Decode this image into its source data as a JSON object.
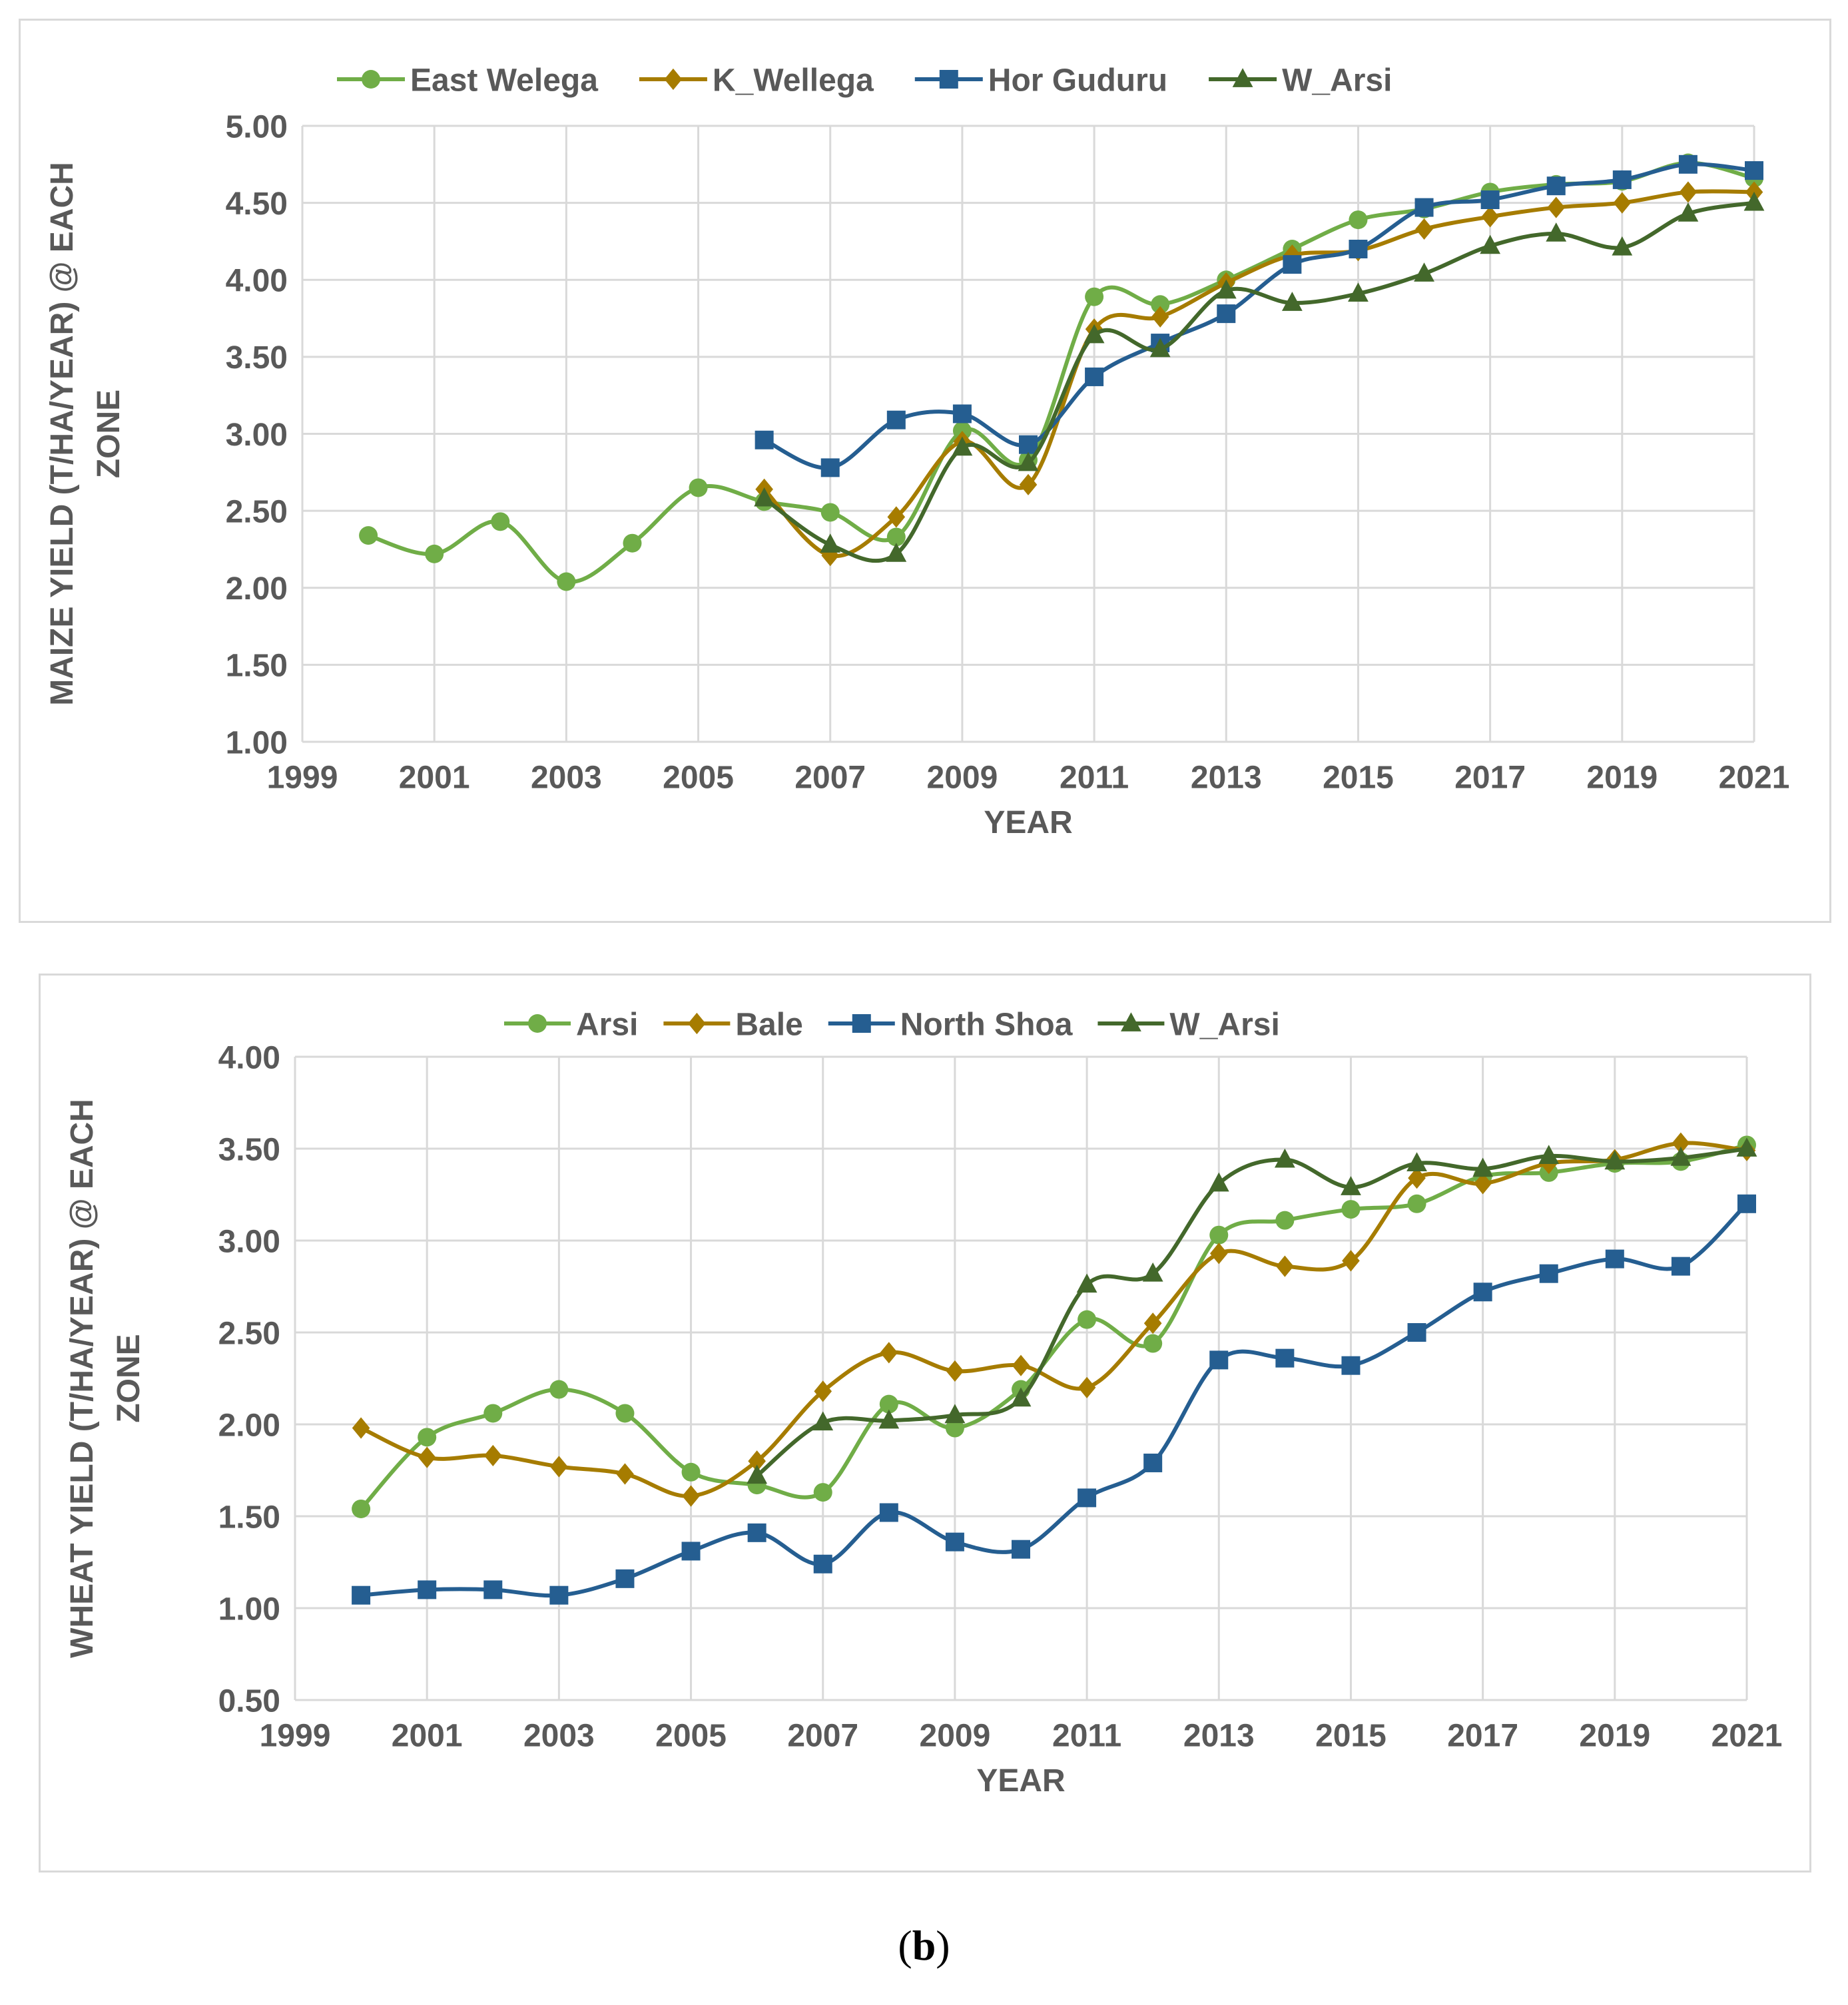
{
  "caption": {
    "open": "(",
    "letter": "b",
    "close": ")"
  },
  "chart_data": [
    {
      "type": "line",
      "id": "maize",
      "title": "",
      "xlabel": "YEAR",
      "ylabel_line1": "MAIZE YIELD (T/HA/YEAR) @ EACH",
      "ylabel_line2": "ZONE",
      "xlim": [
        1999,
        2021
      ],
      "ylim": [
        1.0,
        5.0
      ],
      "xticks": [
        1999,
        2001,
        2003,
        2005,
        2007,
        2009,
        2011,
        2013,
        2015,
        2017,
        2019,
        2021
      ],
      "yticks": [
        "1.00",
        "1.50",
        "2.00",
        "2.50",
        "3.00",
        "3.50",
        "4.00",
        "4.50",
        "5.00"
      ],
      "grid": true,
      "legend_position": "top",
      "series": [
        {
          "name": "East Welega",
          "color": "#70ad47",
          "marker": "circle",
          "x": [
            2000,
            2001,
            2002,
            2003,
            2004,
            2005,
            2006,
            2007,
            2008,
            2009,
            2010,
            2011,
            2012,
            2013,
            2014,
            2015,
            2016,
            2017,
            2018,
            2019,
            2020,
            2021
          ],
          "y": [
            2.34,
            2.22,
            2.43,
            2.04,
            2.29,
            2.65,
            2.56,
            2.49,
            2.33,
            3.02,
            2.83,
            3.89,
            3.84,
            4.0,
            4.2,
            4.39,
            4.46,
            4.57,
            4.62,
            4.64,
            4.76,
            4.66
          ]
        },
        {
          "name": "K_Wellega",
          "color": "#a67c00",
          "marker": "diamond",
          "x": [
            2006,
            2007,
            2008,
            2009,
            2010,
            2011,
            2012,
            2013,
            2014,
            2015,
            2016,
            2017,
            2018,
            2019,
            2020,
            2021
          ],
          "y": [
            2.64,
            2.21,
            2.46,
            2.95,
            2.67,
            3.68,
            3.76,
            3.98,
            4.16,
            4.19,
            4.33,
            4.41,
            4.47,
            4.5,
            4.57,
            4.57
          ]
        },
        {
          "name": "Hor Guduru",
          "color": "#255e91",
          "marker": "square",
          "x": [
            2006,
            2007,
            2008,
            2009,
            2010,
            2011,
            2012,
            2013,
            2014,
            2015,
            2016,
            2017,
            2018,
            2019,
            2020,
            2021
          ],
          "y": [
            2.96,
            2.78,
            3.09,
            3.13,
            2.93,
            3.37,
            3.59,
            3.78,
            4.1,
            4.2,
            4.47,
            4.52,
            4.61,
            4.65,
            4.75,
            4.71
          ]
        },
        {
          "name": "W_Arsi",
          "color": "#43682b",
          "marker": "triangle",
          "x": [
            2006,
            2007,
            2008,
            2009,
            2010,
            2011,
            2012,
            2013,
            2014,
            2015,
            2016,
            2017,
            2018,
            2019,
            2020,
            2021
          ],
          "y": [
            2.58,
            2.28,
            2.22,
            2.91,
            2.81,
            3.64,
            3.55,
            3.93,
            3.85,
            3.91,
            4.04,
            4.22,
            4.3,
            4.21,
            4.43,
            4.5
          ]
        }
      ]
    },
    {
      "type": "line",
      "id": "wheat",
      "title": "",
      "xlabel": "YEAR",
      "ylabel_line1": "WHEAT YIELD (T/HA/YEAR) @ EACH",
      "ylabel_line2": "ZONE",
      "xlim": [
        1999,
        2021
      ],
      "ylim": [
        0.5,
        4.0
      ],
      "xticks": [
        1999,
        2001,
        2003,
        2005,
        2007,
        2009,
        2011,
        2013,
        2015,
        2017,
        2019,
        2021
      ],
      "yticks": [
        "0.50",
        "1.00",
        "1.50",
        "2.00",
        "2.50",
        "3.00",
        "3.50",
        "4.00"
      ],
      "grid": true,
      "legend_position": "top",
      "series": [
        {
          "name": "Arsi",
          "color": "#70ad47",
          "marker": "circle",
          "x": [
            2000,
            2001,
            2002,
            2003,
            2004,
            2005,
            2006,
            2007,
            2008,
            2009,
            2010,
            2011,
            2012,
            2013,
            2014,
            2015,
            2016,
            2017,
            2018,
            2019,
            2020,
            2021
          ],
          "y": [
            1.54,
            1.93,
            2.06,
            2.19,
            2.06,
            1.74,
            1.67,
            1.63,
            2.11,
            1.98,
            2.19,
            2.57,
            2.44,
            3.03,
            3.11,
            3.17,
            3.2,
            3.35,
            3.37,
            3.42,
            3.43,
            3.52
          ]
        },
        {
          "name": "Bale",
          "color": "#a67c00",
          "marker": "diamond",
          "x": [
            2000,
            2001,
            2002,
            2003,
            2004,
            2005,
            2006,
            2007,
            2008,
            2009,
            2010,
            2011,
            2012,
            2013,
            2014,
            2015,
            2016,
            2017,
            2018,
            2019,
            2020,
            2021
          ],
          "y": [
            1.98,
            1.82,
            1.83,
            1.77,
            1.73,
            1.61,
            1.8,
            2.18,
            2.39,
            2.29,
            2.32,
            2.2,
            2.55,
            2.93,
            2.86,
            2.89,
            3.34,
            3.31,
            3.42,
            3.44,
            3.53,
            3.49
          ]
        },
        {
          "name": "North Shoa",
          "color": "#255e91",
          "marker": "square",
          "x": [
            2000,
            2001,
            2002,
            2003,
            2004,
            2005,
            2006,
            2007,
            2008,
            2009,
            2010,
            2011,
            2012,
            2013,
            2014,
            2015,
            2016,
            2017,
            2018,
            2019,
            2020,
            2021
          ],
          "y": [
            1.07,
            1.1,
            1.1,
            1.07,
            1.16,
            1.31,
            1.41,
            1.24,
            1.52,
            1.36,
            1.32,
            1.6,
            1.79,
            2.35,
            2.36,
            2.32,
            2.5,
            2.72,
            2.82,
            2.9,
            2.86,
            3.2
          ]
        },
        {
          "name": "W_Arsi",
          "color": "#43682b",
          "marker": "triangle",
          "x": [
            2006,
            2007,
            2008,
            2009,
            2010,
            2011,
            2012,
            2013,
            2014,
            2015,
            2016,
            2017,
            2018,
            2019,
            2020,
            2021
          ],
          "y": [
            1.72,
            2.01,
            2.02,
            2.05,
            2.14,
            2.76,
            2.82,
            3.31,
            3.44,
            3.29,
            3.42,
            3.39,
            3.46,
            3.43,
            3.45,
            3.5
          ]
        }
      ]
    }
  ]
}
